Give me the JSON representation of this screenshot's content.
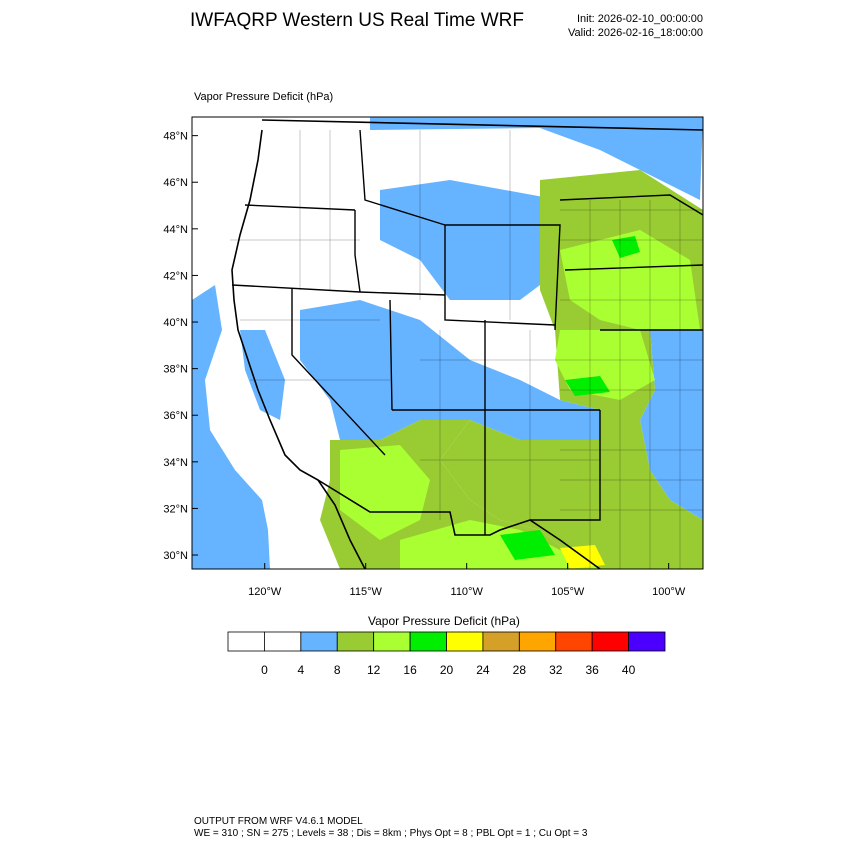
{
  "header": {
    "title": "IWFAQRP Western US Real Time WRF",
    "init": "Init: 2026-02-10_00:00:00",
    "valid": "Valid: 2026-02-16_18:00:00"
  },
  "map": {
    "field_label": "Vapor Pressure Deficit   (hPa)",
    "lat_labels": [
      "48°N",
      "46°N",
      "44°N",
      "42°N",
      "40°N",
      "38°N",
      "36°N",
      "34°N",
      "32°N",
      "30°N"
    ],
    "lon_labels": [
      "120°W",
      "115°W",
      "110°W",
      "105°W",
      "100°W"
    ],
    "extent": {
      "lon_min": -123.6,
      "lon_max": -98.3,
      "lat_min": 29.4,
      "lat_max": 48.8
    }
  },
  "colorbar": {
    "title": "Vapor Pressure Deficit  (hPa)",
    "ticks": [
      "0",
      "4",
      "8",
      "12",
      "16",
      "20",
      "24",
      "28",
      "32",
      "36",
      "40"
    ],
    "colors": [
      "#ffffff",
      "#ffffff",
      "#66b3ff",
      "#99cc33",
      "#aaff33",
      "#00ee00",
      "#ffff00",
      "#d4a028",
      "#ffa500",
      "#ff4500",
      "#ff0000",
      "#4b00ff"
    ]
  },
  "footer": {
    "line1": "OUTPUT FROM WRF V4.6.1 MODEL",
    "line2": "WE = 310 ; SN = 275 ; Levels = 38 ; Dis = 8km ; Phys Opt = 8 ; PBL Opt = 1 ; Cu Opt = 3"
  },
  "legend_colors": {
    "white": "#ffffff",
    "blue": "#66b3ff",
    "olive": "#99cc33",
    "light_green": "#aaff33",
    "green": "#00ee00",
    "yellow": "#ffff00"
  }
}
